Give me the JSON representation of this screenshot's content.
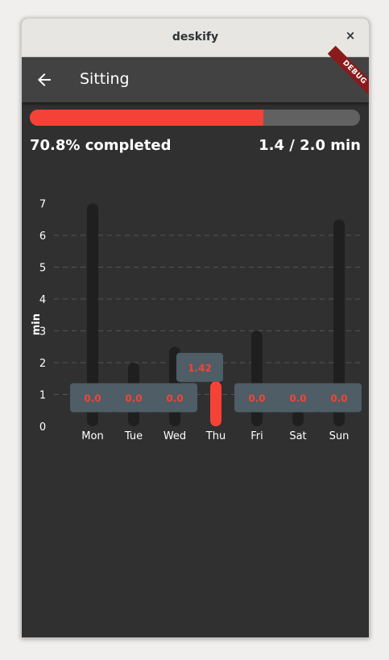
{
  "window": {
    "title": "deskify",
    "close_glyph": "×"
  },
  "appbar": {
    "title": "Sitting",
    "back_icon": "arrow-back-icon",
    "debug_banner": "DEBUG"
  },
  "progress": {
    "fraction": 0.708,
    "percent_text": "70.8% completed",
    "time_text": "1.4 / 2.0 min"
  },
  "colors": {
    "accent": "#f44336",
    "track": "#616161",
    "background": "#303030",
    "bar_bg": "#1f1f1f",
    "tooltip": "#4e5d66"
  },
  "chart_data": {
    "type": "bar",
    "ylabel": "min",
    "ylim": [
      0,
      7
    ],
    "yticks": [
      "0",
      "1",
      "2",
      "3",
      "4",
      "5",
      "6",
      "7"
    ],
    "categories": [
      "Mon",
      "Tue",
      "Wed",
      "Thu",
      "Fri",
      "Sat",
      "Sun"
    ],
    "values": [
      0.0,
      0.0,
      0.0,
      1.42,
      0.0,
      0.0,
      0.0
    ],
    "background_values": [
      7.0,
      2.0,
      2.5,
      2.0,
      3.0,
      0.5,
      6.5
    ],
    "value_labels": [
      "0.0",
      "0.0",
      "0.0",
      "1.42",
      "0.0",
      "0.0",
      "0.0"
    ],
    "grid": "horizontal-dashed",
    "highlight_index": 3
  }
}
